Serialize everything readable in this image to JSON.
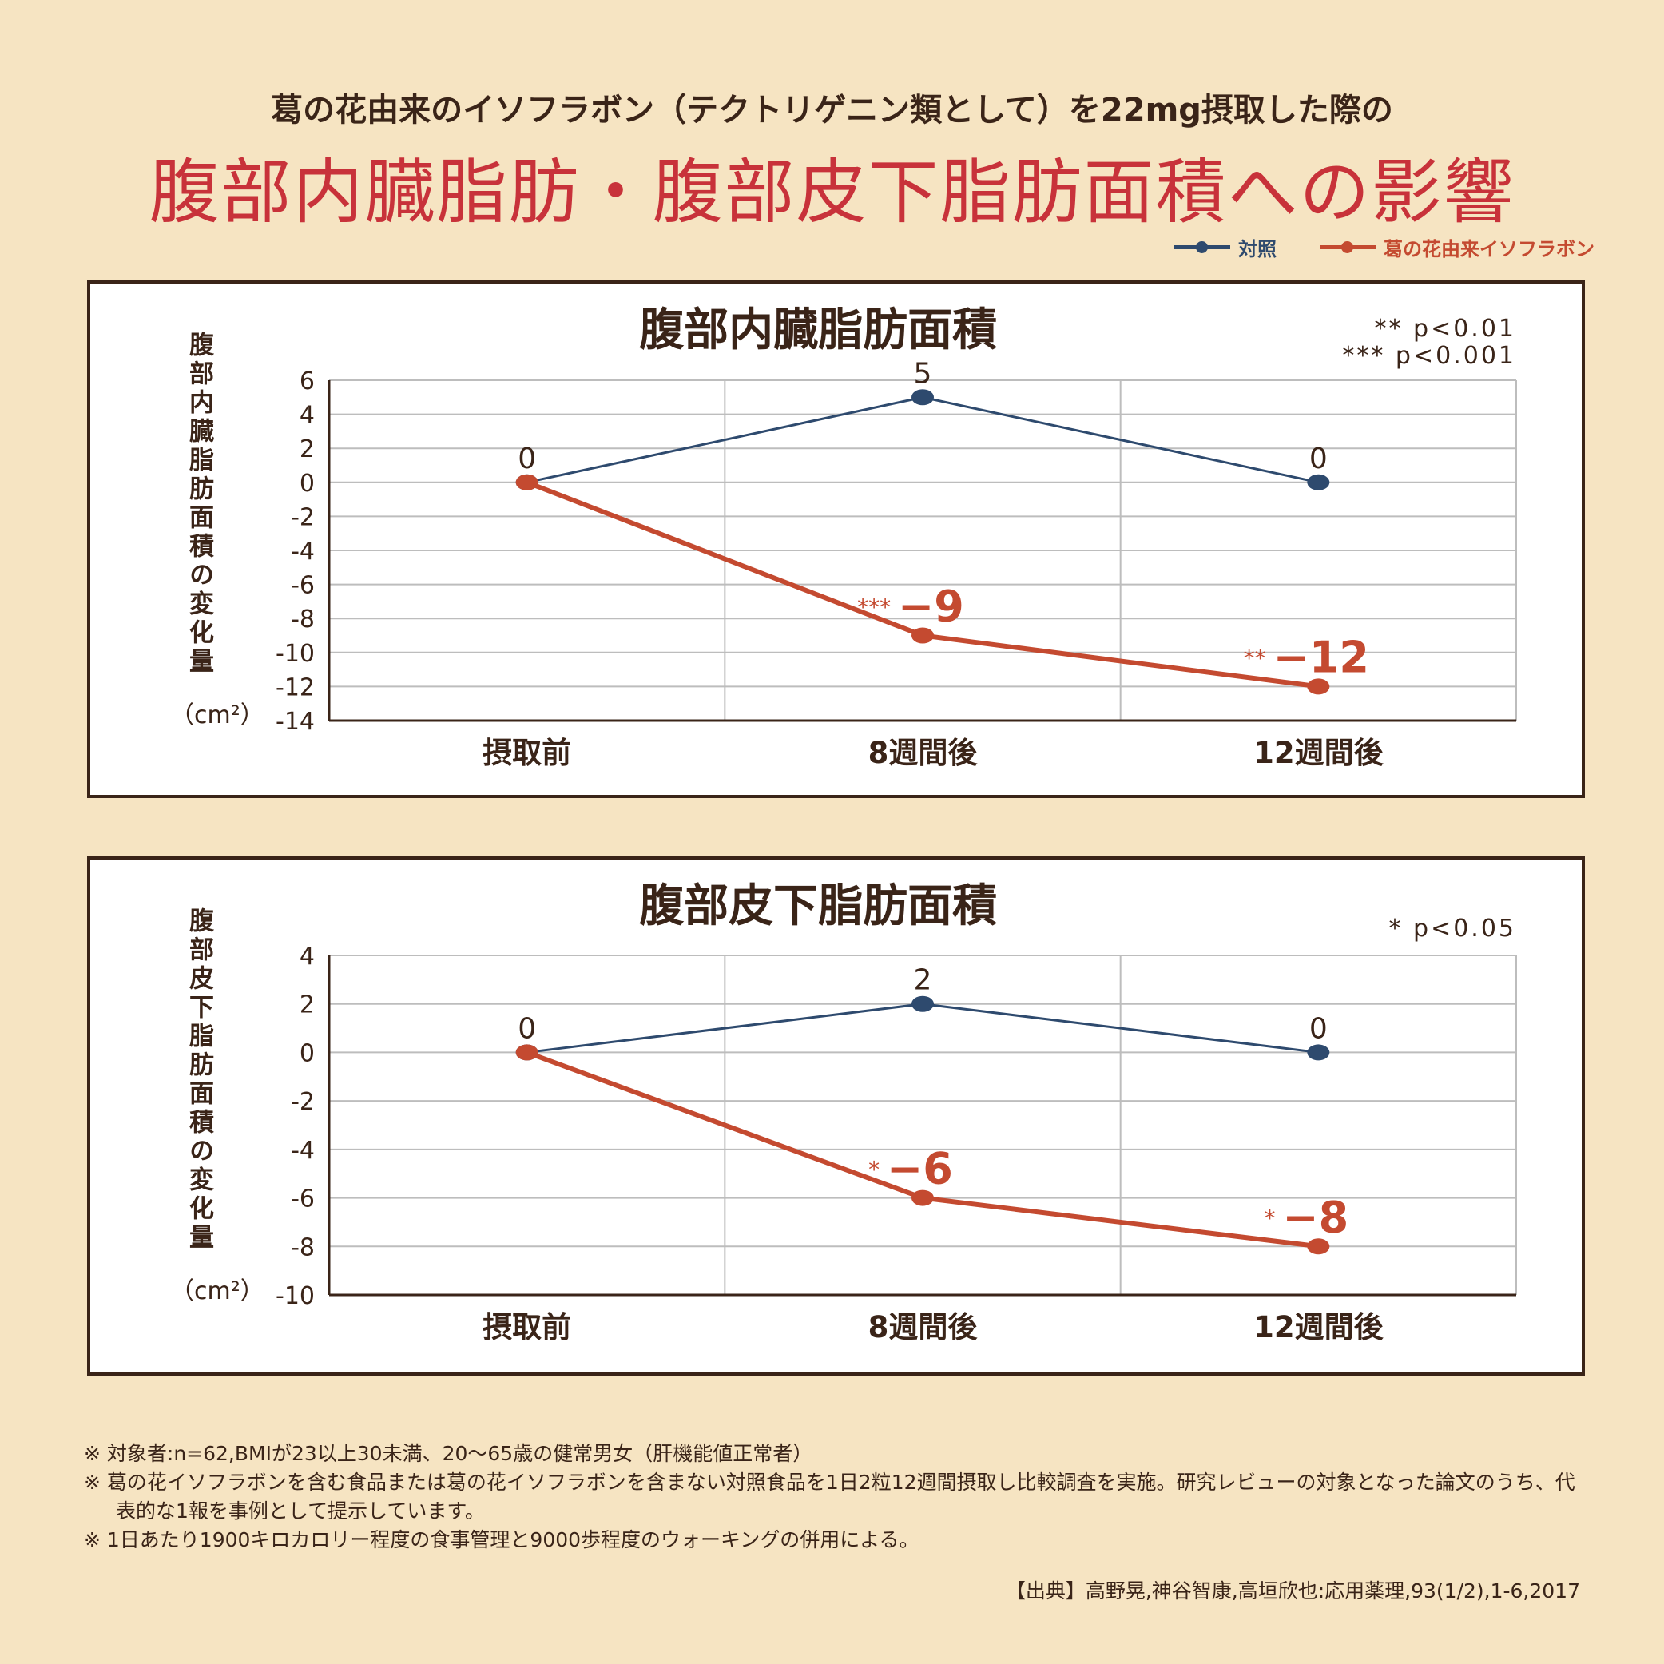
{
  "header": {
    "subtitle": "葛の花由来のイソフラボン（テクトリゲニン類として）を22mg摂取した際の",
    "title": "腹部内臓脂肪・腹部皮下脂肪面積への影響"
  },
  "legend": [
    {
      "label": "対照",
      "color": "#2e4a6e"
    },
    {
      "label": "葛の花由来イソフラボン",
      "color": "#c44a30"
    }
  ],
  "chart_data": [
    {
      "type": "line",
      "title": "腹部内臓脂肪面積",
      "ylabel": "腹部内臓脂肪面積の変化量",
      "yunit": "（cm²）",
      "notes": [
        "** p<0.01",
        "*** p<0.001"
      ],
      "categories": [
        "摂取前",
        "8週間後",
        "12週間後"
      ],
      "ylim": [
        -14,
        6
      ],
      "yticks": [
        6,
        4,
        2,
        0,
        -2,
        -4,
        -6,
        -8,
        -10,
        -12,
        -14
      ],
      "grid": true,
      "series": [
        {
          "name": "対照",
          "color": "#2e4a6e",
          "values": [
            0,
            5,
            0
          ],
          "labels": [
            "0",
            "5",
            "0"
          ]
        },
        {
          "name": "葛の花由来イソフラボン",
          "color": "#c44a30",
          "values": [
            0,
            -9,
            -12
          ],
          "labels": [
            "",
            "−9",
            "−12"
          ],
          "significance": [
            "",
            "***",
            "**"
          ]
        }
      ]
    },
    {
      "type": "line",
      "title": "腹部皮下脂肪面積",
      "ylabel": "腹部皮下脂肪面積の変化量",
      "yunit": "（cm²）",
      "notes": [
        "* p<0.05"
      ],
      "categories": [
        "摂取前",
        "8週間後",
        "12週間後"
      ],
      "ylim": [
        -10,
        4
      ],
      "yticks": [
        4,
        2,
        0,
        -2,
        -4,
        -6,
        -8,
        -10
      ],
      "grid": true,
      "series": [
        {
          "name": "対照",
          "color": "#2e4a6e",
          "values": [
            0,
            2,
            0
          ],
          "labels": [
            "0",
            "2",
            "0"
          ]
        },
        {
          "name": "葛の花由来イソフラボン",
          "color": "#c44a30",
          "values": [
            0,
            -6,
            -8
          ],
          "labels": [
            "",
            "−6",
            "−8"
          ],
          "significance": [
            "",
            "*",
            "*"
          ]
        }
      ]
    }
  ],
  "footnotes": [
    "※ 対象者:n=62,BMIが23以上30未満、20〜65歳の健常男女（肝機能値正常者）",
    "※ 葛の花イソフラボンを含む食品または葛の花イソフラボンを含まない対照食品を1日2粒12週間摂取し比較調査を実施。研究レビューの対象となった論文のうち、代表的な1報を事例として提示しています。",
    "※ 1日あたり1900キロカロリー程度の食事管理と9000歩程度のウォーキングの併用による。"
  ],
  "source": "【出典】高野晃,神谷智康,高垣欣也:応用薬理,93(1/2),1-6,2017"
}
